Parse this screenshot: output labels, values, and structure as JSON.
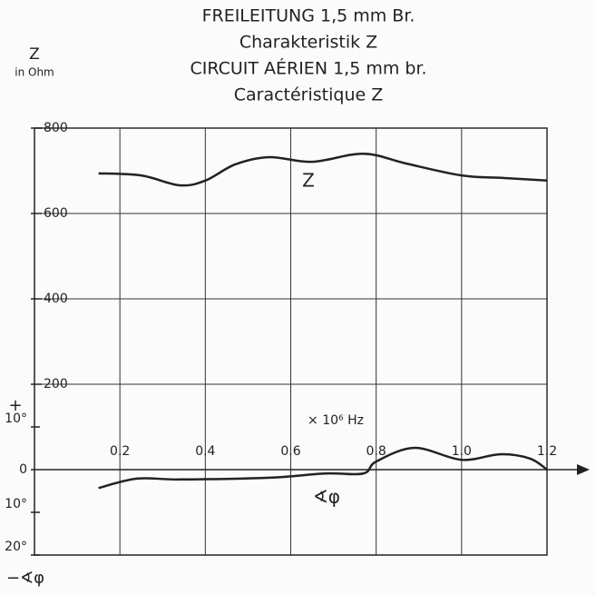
{
  "chart_data": {
    "type": "line",
    "title": [
      "FREILEITUNG 1,5 mm Br.",
      "Charakteristik Z",
      "CIRCUIT AÉRIEN 1,5 mm br.",
      "Caractéristique Z"
    ],
    "y_label": [
      "Z",
      "in Ohm"
    ],
    "y2_label": [
      "+",
      "−∢φ"
    ],
    "x_label": "× 10⁶ Hz",
    "xlim": [
      0,
      1.2
    ],
    "xticks": [
      0.2,
      0.4,
      0.6,
      0.8,
      {
        "value": 1,
        "label": "1.0"
      },
      1.2
    ],
    "ylim": [
      -200,
      800
    ],
    "yticks": [
      200,
      400,
      600,
      800
    ],
    "y2lim": [
      -20,
      80
    ],
    "y2ticks": [
      {
        "value": 10,
        "label": "10°"
      },
      0,
      {
        "value": -10,
        "label": "10°"
      },
      {
        "value": -20,
        "label": "20°"
      }
    ],
    "grid": true,
    "series": [
      {
        "name": "Z",
        "color": "#222222",
        "x": [
          0.15,
          0.25,
          0.34,
          0.4,
          0.47,
          0.55,
          0.65,
          0.77,
          0.87,
          1.0,
          1.1,
          1.2
        ],
        "values": [
          694,
          689,
          666,
          677,
          715,
          732,
          721,
          740,
          717,
          689,
          683,
          677
        ]
      },
      {
        "name": "∢φ",
        "color": "#222222",
        "axis": "y2",
        "x": [
          0.15,
          0.24,
          0.34,
          0.55,
          0.68,
          0.77,
          0.8,
          0.89,
          1.0,
          1.09,
          1.16,
          1.2
        ],
        "values": [
          -4.3,
          -2.1,
          -2.3,
          -1.9,
          -0.9,
          -0.9,
          1.9,
          5.1,
          2.3,
          3.6,
          2.6,
          0
        ]
      }
    ]
  }
}
